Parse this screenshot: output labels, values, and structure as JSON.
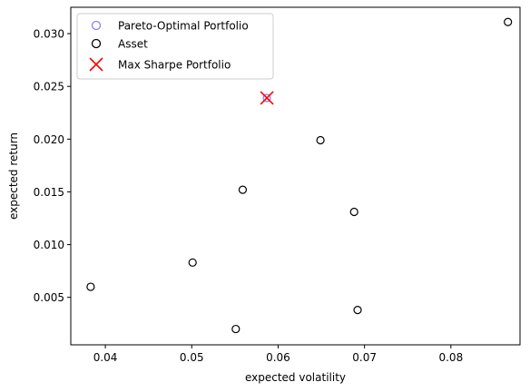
{
  "chart_data": {
    "type": "scatter",
    "title": "",
    "xlabel": "expected volatility",
    "ylabel": "expected return",
    "xlim": [
      0.036,
      0.088
    ],
    "ylim": [
      0.0005,
      0.0325
    ],
    "xticks": [
      0.04,
      0.05,
      0.06,
      0.07,
      0.08
    ],
    "xtick_labels": [
      "0.04",
      "0.05",
      "0.06",
      "0.07",
      "0.08"
    ],
    "yticks": [
      0.005,
      0.01,
      0.015,
      0.02,
      0.025,
      0.03
    ],
    "ytick_labels": [
      "0.005",
      "0.010",
      "0.015",
      "0.020",
      "0.025",
      "0.030"
    ],
    "grid": false,
    "legend": {
      "location": "top-left",
      "entries": [
        {
          "label": "Pareto-Optimal Portfolio",
          "marker": "open-circle",
          "color": "#8080ff"
        },
        {
          "label": "Asset",
          "marker": "open-circle",
          "color": "#000000"
        },
        {
          "label": "Max Sharpe Portfolio",
          "marker": "x",
          "color": "#ff0000"
        }
      ]
    },
    "series": [
      {
        "name": "Pareto-Optimal Portfolio",
        "marker": "open-circle",
        "color": "#8080ff",
        "points": [
          {
            "x": 0.0587,
            "y": 0.0239
          }
        ]
      },
      {
        "name": "Asset",
        "marker": "open-circle",
        "color": "#000000",
        "points": [
          {
            "x": 0.0383,
            "y": 0.006
          },
          {
            "x": 0.0501,
            "y": 0.0083
          },
          {
            "x": 0.0551,
            "y": 0.002
          },
          {
            "x": 0.0559,
            "y": 0.0152
          },
          {
            "x": 0.0649,
            "y": 0.0199
          },
          {
            "x": 0.0688,
            "y": 0.0131
          },
          {
            "x": 0.0692,
            "y": 0.0038
          },
          {
            "x": 0.0866,
            "y": 0.0311
          }
        ]
      },
      {
        "name": "Max Sharpe Portfolio",
        "marker": "x",
        "color": "#ff0000",
        "points": [
          {
            "x": 0.0587,
            "y": 0.0239
          }
        ]
      }
    ]
  }
}
